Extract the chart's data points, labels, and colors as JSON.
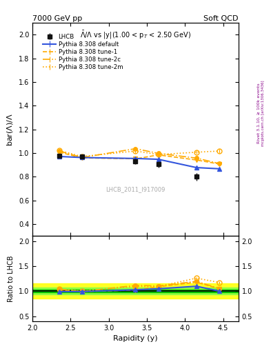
{
  "title_left": "7000 GeV pp",
  "title_right": "Soft QCD",
  "plot_title": "$\\bar{\\Lambda}/\\Lambda$ vs |y|(1.00 < p$_{T}$ < 2.50 GeV)",
  "ylabel_main": "bar($\\Lambda$)/$\\Lambda$",
  "ylabel_ratio": "Ratio to LHCB",
  "xlabel": "Rapidity (y)",
  "right_label": "Rivet 3.1.10, ≥ 100k events",
  "right_label2": "mcplots.cern.ch [arXiv:1306.3436]",
  "watermark": "LHCB_2011_I917009",
  "x_data": [
    2.35,
    2.65,
    3.35,
    3.65,
    4.15,
    4.45
  ],
  "lhcb_y": [
    0.98,
    0.97,
    0.93,
    0.905,
    0.8,
    null
  ],
  "lhcb_yerr": [
    0.012,
    0.015,
    0.022,
    0.025,
    0.032,
    null
  ],
  "pythia_default_y": [
    0.972,
    0.963,
    0.955,
    0.948,
    0.878,
    0.868
  ],
  "pythia_default_yerr": [
    0.004,
    0.004,
    0.004,
    0.004,
    0.006,
    0.006
  ],
  "pythia_tune1_y": [
    1.008,
    0.96,
    0.952,
    0.985,
    0.942,
    0.908
  ],
  "pythia_tune1_yerr": [
    0.008,
    0.008,
    0.008,
    0.008,
    0.01,
    0.01
  ],
  "pythia_tune2c_y": [
    1.018,
    0.963,
    1.038,
    0.998,
    0.958,
    0.912
  ],
  "pythia_tune2c_yerr": [
    0.012,
    0.01,
    0.018,
    0.012,
    0.012,
    0.012
  ],
  "pythia_tune2m_y": [
    1.022,
    0.972,
    1.018,
    0.988,
    1.008,
    1.018
  ],
  "pythia_tune2m_yerr": [
    0.012,
    0.01,
    0.015,
    0.012,
    0.015,
    0.018
  ],
  "ratio_default_y": [
    0.992,
    0.993,
    1.027,
    1.048,
    1.098,
    1.0
  ],
  "ratio_default_yerr": [
    0.004,
    0.004,
    0.008,
    0.008,
    0.012,
    0.01
  ],
  "ratio_tune1_y": [
    1.028,
    0.99,
    1.024,
    1.088,
    1.178,
    1.046
  ],
  "ratio_tune1_yerr": [
    0.01,
    0.008,
    0.01,
    0.012,
    0.015,
    0.015
  ],
  "ratio_tune2c_y": [
    1.038,
    0.993,
    1.116,
    1.103,
    1.198,
    1.05
  ],
  "ratio_tune2c_yerr": [
    0.014,
    0.01,
    0.022,
    0.015,
    0.018,
    0.018
  ],
  "ratio_tune2m_y": [
    1.043,
    1.002,
    1.094,
    1.092,
    1.26,
    1.172
  ],
  "ratio_tune2m_yerr": [
    0.014,
    0.012,
    0.018,
    0.015,
    0.022,
    0.025
  ],
  "color_blue": "#3355dd",
  "color_orange": "#ffaa00",
  "color_lhcb": "#111111",
  "xlim": [
    2.0,
    4.7
  ],
  "ylim_main": [
    0.3,
    2.1
  ],
  "ylim_ratio": [
    0.4,
    2.1
  ],
  "yticks_main": [
    0.4,
    0.6,
    0.8,
    1.0,
    1.2,
    1.4,
    1.6,
    1.8,
    2.0
  ],
  "yticks_ratio": [
    0.5,
    1.0,
    1.5,
    2.0
  ],
  "yellow_band": 0.15,
  "green_band": 0.07,
  "dark_green_band": 0.03
}
